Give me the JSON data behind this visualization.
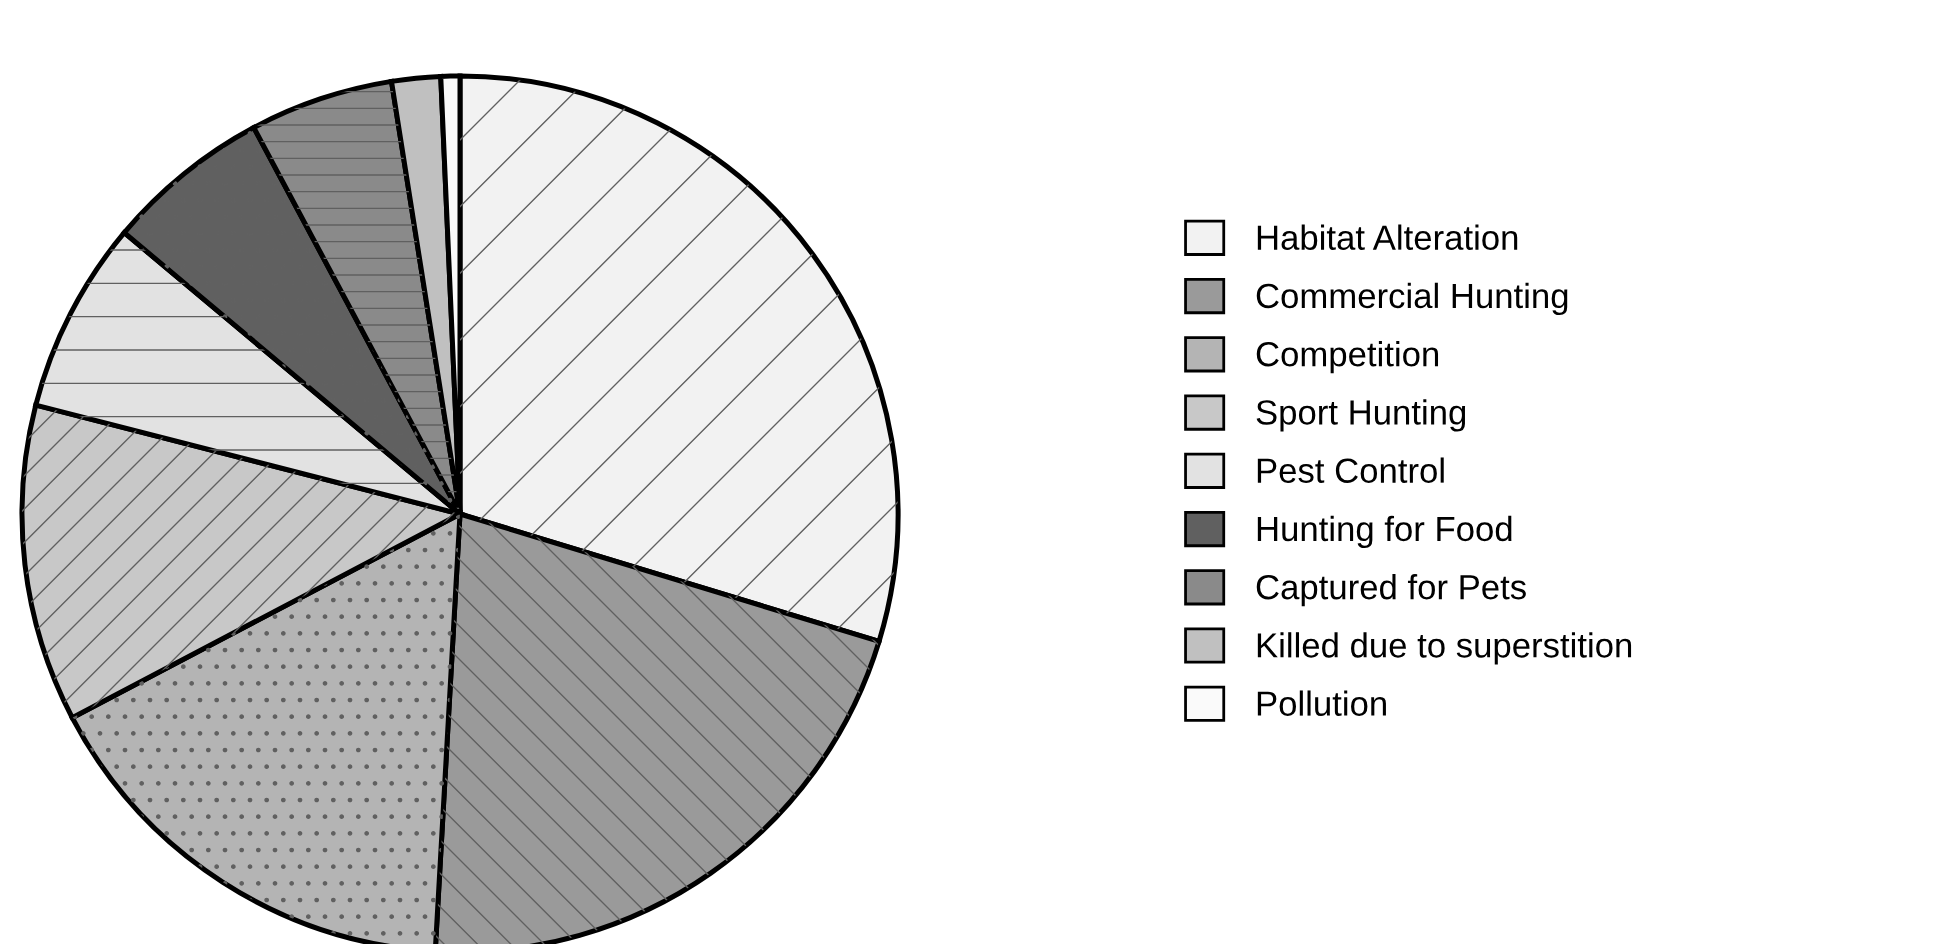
{
  "chart_data": {
    "type": "pie",
    "categories": [
      "Habitat Alteration",
      "Commercial Hunting",
      "Competition",
      "Sport Hunting",
      "Pest Control",
      "Hunting for Food",
      "Captured for Pets",
      "Killed due to superstition",
      "Pollution"
    ],
    "values": [
      29.7,
      21.2,
      16.4,
      11.7,
      7.1,
      6.1,
      5.3,
      1.8,
      0.7
    ],
    "colors": [
      "#f2f2f2",
      "#9a9a9a",
      "#b4b4b4",
      "#c8c8c8",
      "#e2e2e2",
      "#606060",
      "#8a8a8a",
      "#c0c0c0",
      "#fafafa"
    ],
    "legend": "right"
  }
}
